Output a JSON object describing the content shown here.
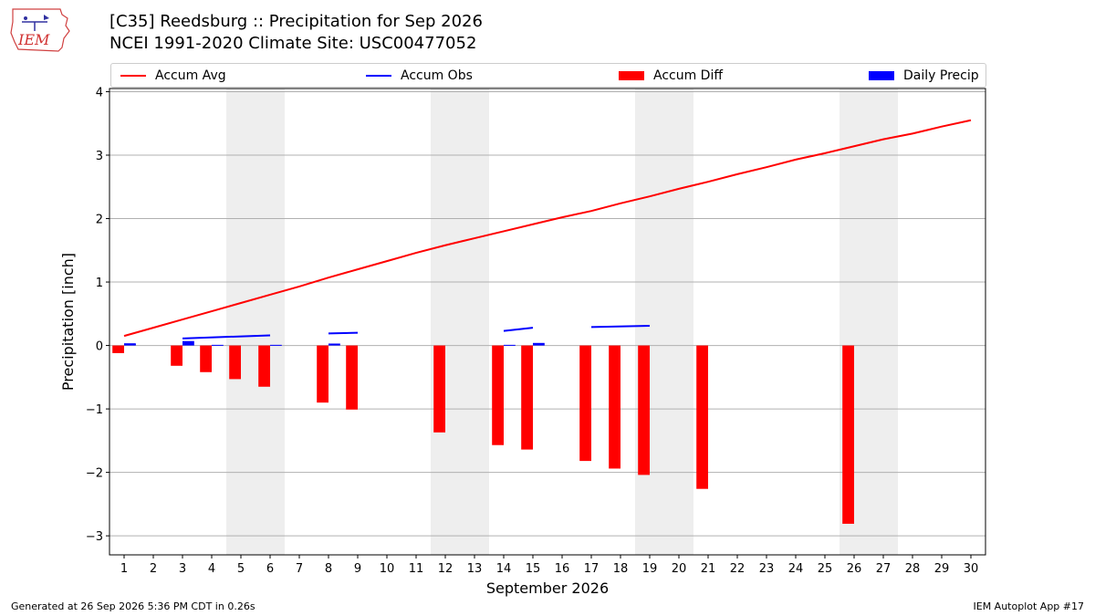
{
  "header": {
    "title_line1": "[C35] Reedsburg :: Precipitation for Sep 2026",
    "title_line2": "NCEI 1991-2020 Climate Site: USC00477052",
    "logo_text": "IEM"
  },
  "footer": {
    "left": "Generated at 26 Sep 2026 5:36 PM CDT in 0.26s",
    "right": "IEM Autoplot App #17"
  },
  "colors": {
    "accum_avg": "#ff0000",
    "accum_obs": "#0000ff",
    "accum_diff": "#ff0000",
    "daily_precip": "#0000ff",
    "weekend_shade": "#eeeeee",
    "grid": "#b0b0b0"
  },
  "chart_data": {
    "type": "bar",
    "xlabel": "September 2026",
    "ylabel": "Precipitation [inch]",
    "ylim": [
      -3.3,
      4.05
    ],
    "xlim": [
      0.5,
      30.5
    ],
    "yticks": [
      4,
      3,
      2,
      1,
      0,
      -1,
      -2,
      -3
    ],
    "ytick_labels": [
      "4",
      "3",
      "2",
      "1",
      "0",
      "−1",
      "−2",
      "−3"
    ],
    "xticks": [
      1,
      2,
      3,
      4,
      5,
      6,
      7,
      8,
      9,
      10,
      11,
      12,
      13,
      14,
      15,
      16,
      17,
      18,
      19,
      20,
      21,
      22,
      23,
      24,
      25,
      26,
      27,
      28,
      29,
      30
    ],
    "grid": true,
    "legend_position": "top",
    "legend": {
      "accum_avg": "Accum Avg",
      "accum_obs": "Accum Obs",
      "accum_diff": "Accum Diff",
      "daily_precip": "Daily Precip"
    },
    "weekend_shading": [
      [
        4.5,
        6.5
      ],
      [
        11.5,
        13.5
      ],
      [
        18.5,
        20.5
      ],
      [
        25.5,
        27.5
      ]
    ],
    "accum_avg": {
      "days": [
        1,
        2,
        3,
        4,
        5,
        6,
        7,
        8,
        9,
        10,
        11,
        12,
        13,
        14,
        15,
        16,
        17,
        18,
        19,
        20,
        21,
        22,
        23,
        24,
        25,
        26,
        27,
        28,
        29,
        30
      ],
      "values": [
        0.15,
        0.28,
        0.41,
        0.54,
        0.67,
        0.8,
        0.93,
        1.07,
        1.2,
        1.33,
        1.46,
        1.58,
        1.69,
        1.8,
        1.91,
        2.02,
        2.12,
        2.24,
        2.35,
        2.47,
        2.58,
        2.7,
        2.81,
        2.93,
        3.03,
        3.14,
        3.25,
        3.34,
        3.45,
        3.55
      ]
    },
    "accum_obs": [
      {
        "days": [
          1,
          1.4
        ],
        "values": [
          0.02,
          0.02
        ]
      },
      {
        "days": [
          3,
          6
        ],
        "values": [
          0.11,
          0.16
        ]
      },
      {
        "days": [
          8,
          9
        ],
        "values": [
          0.19,
          0.2
        ]
      },
      {
        "days": [
          14,
          15
        ],
        "values": [
          0.23,
          0.28
        ]
      },
      {
        "days": [
          17,
          19
        ],
        "values": [
          0.29,
          0.31
        ]
      }
    ],
    "accum_diff": {
      "days": [
        1,
        3,
        4,
        5,
        6,
        8,
        9,
        12,
        14,
        15,
        17,
        18,
        19,
        21,
        26
      ],
      "values": [
        -0.12,
        -0.32,
        -0.42,
        -0.53,
        -0.65,
        -0.9,
        -1.01,
        -1.37,
        -1.57,
        -1.64,
        -1.82,
        -1.94,
        -2.04,
        -2.26,
        -2.81
      ]
    },
    "daily_precip": {
      "days": [
        1,
        3,
        4,
        6,
        8,
        14,
        15
      ],
      "values": [
        0.02,
        0.07,
        0.01,
        0.01,
        0.03,
        0.01,
        0.04
      ]
    }
  }
}
